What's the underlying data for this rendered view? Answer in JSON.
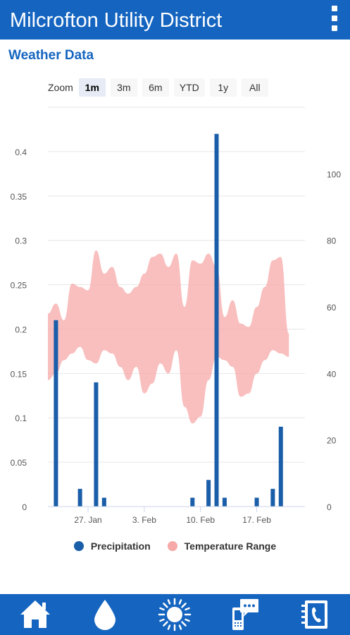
{
  "header": {
    "title": "Milcrofton Utility District"
  },
  "section": {
    "title": "Weather Data"
  },
  "zoom": {
    "label": "Zoom",
    "options": [
      "1m",
      "3m",
      "6m",
      "YTD",
      "1y",
      "All"
    ],
    "selected": "1m"
  },
  "legend": {
    "precipitation": "Precipitation",
    "temperature": "Temperature Range"
  },
  "colors": {
    "brand": "#1565c0",
    "precipitation": "#1a5da8",
    "temperature": "#f7a8a8"
  },
  "chart_data": {
    "type": "bar",
    "x_type": "date",
    "x_range": [
      "2018-01-22",
      "2018-02-23"
    ],
    "x_ticks": [
      {
        "date": "2018-01-27",
        "label": "27. Jan"
      },
      {
        "date": "2018-02-03",
        "label": "3. Feb"
      },
      {
        "date": "2018-02-10",
        "label": "10. Feb"
      },
      {
        "date": "2018-02-17",
        "label": "17. Feb"
      }
    ],
    "y_left": {
      "min": 0,
      "max": 0.45,
      "ticks": [
        0,
        0.05,
        0.1,
        0.15,
        0.2,
        0.25,
        0.3,
        0.35,
        0.4
      ],
      "tick_labels": [
        "0",
        "0.05",
        "0.1",
        "0.15",
        "0.2",
        "0.25",
        "0.3",
        "0.35",
        "0.4"
      ]
    },
    "y_right": {
      "min": 0,
      "max": 120,
      "ticks": [
        0,
        20,
        40,
        60,
        80,
        100
      ],
      "tick_labels": [
        "0",
        "20",
        "40",
        "60",
        "80",
        "100"
      ]
    },
    "grid": true,
    "legend_position": "bottom",
    "series": [
      {
        "name": "Precipitation",
        "type": "column",
        "axis": "left",
        "points": [
          [
            "2018-01-23",
            0.21
          ],
          [
            "2018-01-26",
            0.02
          ],
          [
            "2018-01-28",
            0.14
          ],
          [
            "2018-01-29",
            0.01
          ],
          [
            "2018-02-09",
            0.01
          ],
          [
            "2018-02-11",
            0.03
          ],
          [
            "2018-02-12",
            0.42
          ],
          [
            "2018-02-13",
            0.01
          ],
          [
            "2018-02-17",
            0.01
          ],
          [
            "2018-02-19",
            0.02
          ],
          [
            "2018-02-20",
            0.09
          ]
        ]
      },
      {
        "name": "Temperature Range",
        "type": "arearange",
        "axis": "right",
        "points": [
          [
            "2018-01-22",
            38,
            58
          ],
          [
            "2018-01-23",
            40,
            61
          ],
          [
            "2018-01-24",
            44,
            56
          ],
          [
            "2018-01-25",
            46,
            67
          ],
          [
            "2018-01-26",
            48,
            66
          ],
          [
            "2018-01-27",
            44,
            65
          ],
          [
            "2018-01-28",
            43,
            77
          ],
          [
            "2018-01-29",
            47,
            70
          ],
          [
            "2018-01-30",
            46,
            72
          ],
          [
            "2018-01-31",
            42,
            66
          ],
          [
            "2018-02-01",
            38,
            64
          ],
          [
            "2018-02-02",
            42,
            66
          ],
          [
            "2018-02-03",
            34,
            70
          ],
          [
            "2018-02-04",
            37,
            75
          ],
          [
            "2018-02-05",
            43,
            76
          ],
          [
            "2018-02-06",
            40,
            72
          ],
          [
            "2018-02-07",
            47,
            76
          ],
          [
            "2018-02-08",
            30,
            60
          ],
          [
            "2018-02-09",
            25,
            74
          ],
          [
            "2018-02-10",
            27,
            73
          ],
          [
            "2018-02-11",
            38,
            76
          ],
          [
            "2018-02-12",
            45,
            72
          ],
          [
            "2018-02-13",
            44,
            57
          ],
          [
            "2018-02-14",
            42,
            62
          ],
          [
            "2018-02-15",
            33,
            55
          ],
          [
            "2018-02-16",
            34,
            54
          ],
          [
            "2018-02-17",
            40,
            60
          ],
          [
            "2018-02-18",
            44,
            66
          ],
          [
            "2018-02-19",
            47,
            74
          ],
          [
            "2018-02-20",
            46,
            75
          ],
          [
            "2018-02-21",
            45,
            52
          ]
        ]
      }
    ]
  },
  "nav": {
    "items": [
      {
        "name": "home",
        "icon": "home-icon"
      },
      {
        "name": "water",
        "icon": "water-drop-icon"
      },
      {
        "name": "weather",
        "icon": "sun-icon"
      },
      {
        "name": "messages",
        "icon": "mobile-chat-icon"
      },
      {
        "name": "contacts",
        "icon": "contact-book-icon"
      }
    ]
  }
}
